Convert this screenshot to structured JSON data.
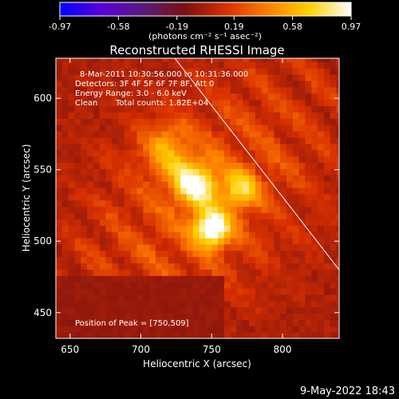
{
  "colorbar": {
    "ticks": [
      "-0.97",
      "-0.58",
      "-0.19",
      "0.19",
      "0.58",
      "0.97"
    ],
    "tick_values": [
      -0.97,
      -0.58,
      -0.19,
      0.19,
      0.58,
      0.97
    ],
    "range": [
      -0.97,
      0.97
    ],
    "unit_label": "(photons cm⁻² s⁻¹ asec⁻²)"
  },
  "chart_data": {
    "type": "heatmap",
    "title": "Reconstructed RHESSI Image",
    "xlabel": "Heliocentric X (arcsec)",
    "ylabel": "Heliocentric Y (arcsec)",
    "xlim": [
      640,
      840
    ],
    "ylim": [
      432,
      628
    ],
    "x_ticks": [
      650,
      700,
      750,
      800
    ],
    "y_ticks": [
      450,
      500,
      550,
      600
    ],
    "annotations": {
      "time_range": "8-Mar-2011 10:30:56.000 to 10:31:36.000",
      "detectors": "Detectors: 3F 4F 5F 6F 7F 8F, Att 0",
      "energy": "Energy Range: 3.0 - 6.0 keV",
      "clean": "Clean",
      "total_counts": "Total counts: 1.82E+04",
      "peak": "Position of Peak = [750,509]"
    },
    "peak": [
      750,
      509
    ],
    "limb_line": [
      [
        724,
        628
      ],
      [
        840,
        480
      ]
    ],
    "sources": [
      {
        "x": 750,
        "y": 509,
        "amp": 0.97,
        "sigma": 9
      },
      {
        "x": 738,
        "y": 541,
        "amp": 0.78,
        "sigma": 11
      },
      {
        "x": 770,
        "y": 536,
        "amp": 0.55,
        "sigma": 9
      },
      {
        "x": 718,
        "y": 565,
        "amp": 0.42,
        "sigma": 12
      }
    ],
    "colormap": [
      "#0000ff",
      "#5a00d8",
      "#5a1a7a",
      "#7a1010",
      "#d83000",
      "#ff8000",
      "#ffd000",
      "#ffffff"
    ]
  },
  "footer": {
    "date": "9-May-2022 18:43"
  }
}
